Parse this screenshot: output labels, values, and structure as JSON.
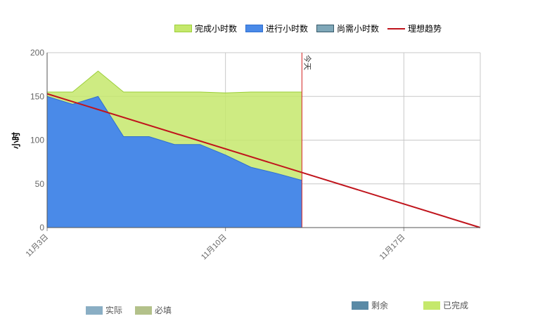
{
  "chart_data": {
    "type": "area",
    "ylabel": "小时",
    "ylim": [
      0,
      200
    ],
    "yticks": [
      0,
      50,
      100,
      150,
      200
    ],
    "x_start": "2013-11-03",
    "x_end": "2013-11-20",
    "x_ticks": [
      {
        "date": "2013-11-03",
        "label": "11月3日"
      },
      {
        "date": "2013-11-10",
        "label": "11月10日"
      },
      {
        "date": "2013-11-17",
        "label": "11月17日"
      }
    ],
    "today": {
      "date": "2013-11-13",
      "label": "今天"
    },
    "series": [
      {
        "name": "完成小时数",
        "color": "#c5e86c",
        "points": [
          {
            "x": "2013-11-03",
            "y": 155
          },
          {
            "x": "2013-11-04",
            "y": 155
          },
          {
            "x": "2013-11-05",
            "y": 179
          },
          {
            "x": "2013-11-06",
            "y": 155
          },
          {
            "x": "2013-11-07",
            "y": 155
          },
          {
            "x": "2013-11-08",
            "y": 155
          },
          {
            "x": "2013-11-09",
            "y": 155
          },
          {
            "x": "2013-11-10",
            "y": 154
          },
          {
            "x": "2013-11-11",
            "y": 155
          },
          {
            "x": "2013-11-12",
            "y": 155
          },
          {
            "x": "2013-11-13",
            "y": 155
          }
        ]
      },
      {
        "name": "进行小时数",
        "color": "#4a8ae8",
        "points": [
          {
            "x": "2013-11-03",
            "y": 150
          },
          {
            "x": "2013-11-04",
            "y": 141
          },
          {
            "x": "2013-11-05",
            "y": 150
          },
          {
            "x": "2013-11-06",
            "y": 104
          },
          {
            "x": "2013-11-07",
            "y": 104
          },
          {
            "x": "2013-11-08",
            "y": 95
          },
          {
            "x": "2013-11-09",
            "y": 95
          },
          {
            "x": "2013-11-10",
            "y": 83
          },
          {
            "x": "2013-11-11",
            "y": 69
          },
          {
            "x": "2013-11-12",
            "y": 62
          },
          {
            "x": "2013-11-13",
            "y": 54
          }
        ]
      },
      {
        "name": "尚需小时数",
        "color": "#7fa7b8",
        "points": []
      },
      {
        "name": "理想趋势",
        "color": "#c0141c",
        "points": [
          {
            "x": "2013-11-03",
            "y": 153
          },
          {
            "x": "2013-11-20",
            "y": 0
          }
        ]
      }
    ],
    "legend_top": [
      {
        "name": "完成小时数",
        "kind": "box",
        "color": "#c5e86c",
        "border": "#9ccf3a"
      },
      {
        "name": "进行小时数",
        "kind": "box",
        "color": "#4a8ae8",
        "border": "#2f6fd0"
      },
      {
        "name": "尚需小时数",
        "kind": "box",
        "color": "#7fa7b8",
        "border": "#375a6a"
      },
      {
        "name": "理想趋势",
        "kind": "line",
        "color": "#c0141c"
      }
    ],
    "legend_bottom_left": [
      {
        "name": "实际",
        "color": "#8aaec4"
      },
      {
        "name": "必填",
        "color": "#b3c18a"
      }
    ],
    "legend_bottom_right": [
      {
        "name": "剩余",
        "color": "#5a8aa6"
      },
      {
        "name": "已完成",
        "color": "#c5e86c"
      }
    ],
    "grid": true
  }
}
